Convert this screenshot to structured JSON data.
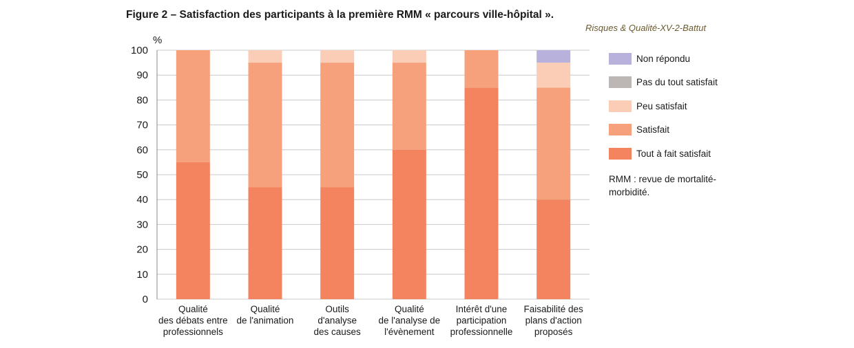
{
  "figure": {
    "title": "Figure 2 – Satisfaction des participants à la première RMM « parcours ville-hôpital ».",
    "source": "Risques & Qualité-XV-2-Battut",
    "note": "RMM : revue de mortalité-morbidité."
  },
  "chart_data": {
    "type": "bar",
    "stacked": true,
    "y_unit": "%",
    "ylim": [
      0,
      100
    ],
    "y_ticks": [
      0,
      10,
      20,
      30,
      40,
      50,
      60,
      70,
      80,
      90,
      100
    ],
    "grid": true,
    "legend_position": "right",
    "categories": [
      [
        "Qualité",
        "des débats entre",
        "professionnels"
      ],
      [
        "Qualité",
        "de l'animation"
      ],
      [
        "Outils",
        "d'analyse",
        "des causes"
      ],
      [
        "Qualité",
        "de l'analyse de",
        "l'évènement"
      ],
      [
        "Intérêt d'une",
        "participation",
        "professionnelle"
      ],
      [
        "Faisabilité  des",
        "plans d'action",
        "proposés"
      ]
    ],
    "series": [
      {
        "name": "Tout à fait satisfait",
        "color": "#f4845f",
        "values": [
          55,
          45,
          45,
          60,
          85,
          40
        ]
      },
      {
        "name": "Satisfait",
        "color": "#f6a07c",
        "values": [
          45,
          50,
          50,
          35,
          15,
          45
        ]
      },
      {
        "name": "Peu satisfait",
        "color": "#fbcdb6",
        "values": [
          0,
          5,
          5,
          5,
          0,
          10
        ]
      },
      {
        "name": "Pas du tout satisfait",
        "color": "#bcb7b4",
        "values": [
          0,
          0,
          0,
          0,
          0,
          0
        ]
      },
      {
        "name": "Non répondu",
        "color": "#b7b1dc",
        "values": [
          0,
          0,
          0,
          0,
          0,
          5
        ]
      }
    ],
    "legend_order": [
      "Non répondu",
      "Pas du tout satisfait",
      "Peu satisfait",
      "Satisfait",
      "Tout à fait satisfait"
    ]
  }
}
